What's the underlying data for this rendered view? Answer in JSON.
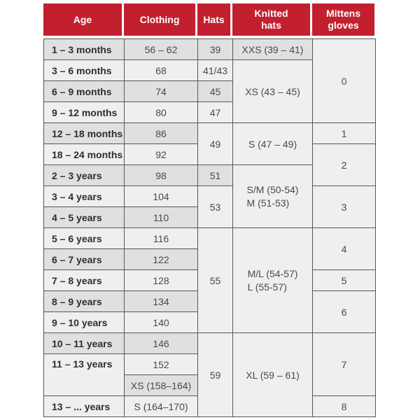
{
  "table": {
    "colors": {
      "header_bg": "#c2202e",
      "header_text": "#ffffff",
      "row_gray": "#e0e0e1",
      "row_light": "#efefef",
      "border": "#55565a",
      "age_text": "#2e2e30",
      "value_text": "#48494b"
    },
    "header": {
      "columns": [
        "Age",
        "Clothing",
        "Hats",
        "Knitted\nhats",
        "Mittens\ngloves"
      ]
    },
    "rows": [
      {
        "cells": [
          {
            "col": "age",
            "t": "1 – 3 months",
            "s": "g"
          },
          {
            "col": "clothing",
            "t": "56 – 62",
            "s": "g"
          },
          {
            "col": "hats",
            "t": "39",
            "s": "g"
          },
          {
            "col": "knitted",
            "t": "XXS (39 – 41)",
            "s": "g"
          },
          {
            "col": "mittens",
            "t": "0",
            "r": 4,
            "s": "w"
          }
        ]
      },
      {
        "cells": [
          {
            "col": "age",
            "t": "3 – 6 months",
            "s": "w"
          },
          {
            "col": "clothing",
            "t": "68",
            "s": "w"
          },
          {
            "col": "hats",
            "t": "41/43",
            "s": "w"
          },
          {
            "col": "knitted",
            "t": "XS (43 – 45)",
            "r": 3,
            "s": "w"
          }
        ]
      },
      {
        "cells": [
          {
            "col": "age",
            "t": "6 – 9 months",
            "s": "g"
          },
          {
            "col": "clothing",
            "t": "74",
            "s": "g"
          },
          {
            "col": "hats",
            "t": "45",
            "s": "g"
          }
        ]
      },
      {
        "cells": [
          {
            "col": "age",
            "t": "9 – 12 months",
            "s": "w"
          },
          {
            "col": "clothing",
            "t": "80",
            "s": "w"
          },
          {
            "col": "hats",
            "t": "47",
            "s": "w"
          }
        ]
      },
      {
        "cells": [
          {
            "col": "age",
            "t": "12 – 18 months",
            "s": "g"
          },
          {
            "col": "clothing",
            "t": "86",
            "s": "g"
          },
          {
            "col": "hats",
            "t": "49",
            "r": 2,
            "s": "w"
          },
          {
            "col": "knitted",
            "t": "S (47 – 49)",
            "r": 2,
            "s": "w"
          },
          {
            "col": "mittens",
            "t": "1",
            "s": "w"
          }
        ]
      },
      {
        "cells": [
          {
            "col": "age",
            "t": "18 – 24 months",
            "s": "w"
          },
          {
            "col": "clothing",
            "t": "92",
            "s": "w"
          },
          {
            "col": "mittens",
            "t": "2",
            "r": 2,
            "s": "w"
          }
        ]
      },
      {
        "cells": [
          {
            "col": "age",
            "t": "2 – 3 years",
            "s": "g"
          },
          {
            "col": "clothing",
            "t": "98",
            "s": "g"
          },
          {
            "col": "hats",
            "t": "51",
            "s": "g"
          },
          {
            "col": "knitted",
            "t": "S/M (50-54)\nM (51-53)",
            "r": 3,
            "s": "w"
          }
        ]
      },
      {
        "cells": [
          {
            "col": "age",
            "t": "3 – 4 years",
            "s": "w"
          },
          {
            "col": "clothing",
            "t": "104",
            "s": "w"
          },
          {
            "col": "hats",
            "t": "53",
            "r": 2,
            "s": "w"
          },
          {
            "col": "mittens",
            "t": "3",
            "r": 2,
            "s": "w"
          }
        ]
      },
      {
        "cells": [
          {
            "col": "age",
            "t": "4 – 5 years",
            "s": "g"
          },
          {
            "col": "clothing",
            "t": "110",
            "s": "g"
          }
        ]
      },
      {
        "cells": [
          {
            "col": "age",
            "t": "5 – 6 years",
            "s": "w"
          },
          {
            "col": "clothing",
            "t": "116",
            "s": "w"
          },
          {
            "col": "hats",
            "t": "55",
            "r": 5,
            "s": "w"
          },
          {
            "col": "knitted",
            "t": "M/L (54-57)\nL (55-57)",
            "r": 5,
            "s": "w"
          },
          {
            "col": "mittens",
            "t": "4",
            "r": 2,
            "s": "w"
          }
        ]
      },
      {
        "cells": [
          {
            "col": "age",
            "t": "6 – 7 years",
            "s": "g"
          },
          {
            "col": "clothing",
            "t": "122",
            "s": "g"
          }
        ]
      },
      {
        "cells": [
          {
            "col": "age",
            "t": "7 – 8 years",
            "s": "w"
          },
          {
            "col": "clothing",
            "t": "128",
            "s": "w"
          },
          {
            "col": "mittens",
            "t": "5",
            "s": "w"
          }
        ]
      },
      {
        "cells": [
          {
            "col": "age",
            "t": "8 – 9 years",
            "s": "g"
          },
          {
            "col": "clothing",
            "t": "134",
            "s": "g"
          },
          {
            "col": "mittens",
            "t": "6",
            "r": 2,
            "s": "w"
          }
        ]
      },
      {
        "cells": [
          {
            "col": "age",
            "t": "9 – 10 years",
            "s": "w"
          },
          {
            "col": "clothing",
            "t": "140",
            "s": "w"
          }
        ]
      },
      {
        "cells": [
          {
            "col": "age",
            "t": "10 – 11 years",
            "s": "g"
          },
          {
            "col": "clothing",
            "t": "146",
            "s": "g"
          },
          {
            "col": "hats",
            "t": "59",
            "r": 4,
            "s": "w"
          },
          {
            "col": "knitted",
            "t": "XL (59 – 61)",
            "r": 4,
            "s": "w"
          },
          {
            "col": "mittens",
            "t": "7",
            "r": 3,
            "s": "w"
          }
        ]
      },
      {
        "cells": [
          {
            "col": "age",
            "t": "11 – 13 years",
            "r": 2,
            "s": "w",
            "va": "top"
          },
          {
            "col": "clothing",
            "t": "152",
            "s": "w"
          }
        ]
      },
      {
        "cells": [
          {
            "col": "clothing",
            "t": "XS (158–164)",
            "s": "g"
          }
        ]
      },
      {
        "cells": [
          {
            "col": "age",
            "t": "13 – ... years",
            "s": "w"
          },
          {
            "col": "clothing",
            "t": "S (164–170)",
            "s": "w"
          },
          {
            "col": "mittens",
            "t": "8",
            "s": "w"
          }
        ]
      }
    ]
  }
}
